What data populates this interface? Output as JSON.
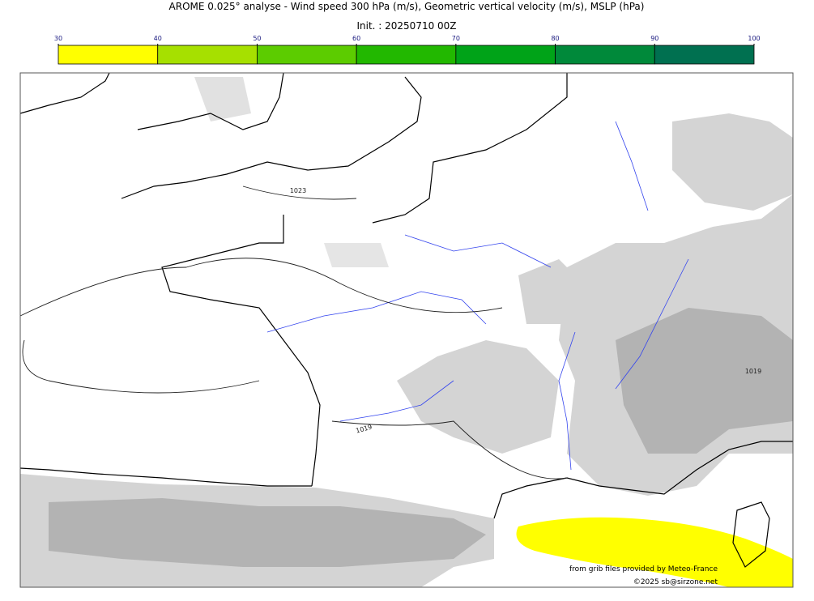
{
  "header": {
    "title": "AROME 0.025° analyse - Wind speed 300 hPa (m/s), Geometric vertical velocity (m/s), MSLP (hPa)",
    "init": "Init. : 20250710 00Z"
  },
  "colorbar": {
    "ticks": [
      30,
      40,
      50,
      60,
      70,
      80,
      90,
      100
    ],
    "colors": [
      "#ffff00",
      "#a6e000",
      "#5ccc00",
      "#22b800",
      "#00a318",
      "#00893a",
      "#007050"
    ]
  },
  "map": {
    "isobar_labels": [
      "1023",
      "1019",
      "1019"
    ]
  },
  "credits": [
    "from grib files provided by Meteo-France",
    "©2025 sb@sirzone.net"
  ]
}
